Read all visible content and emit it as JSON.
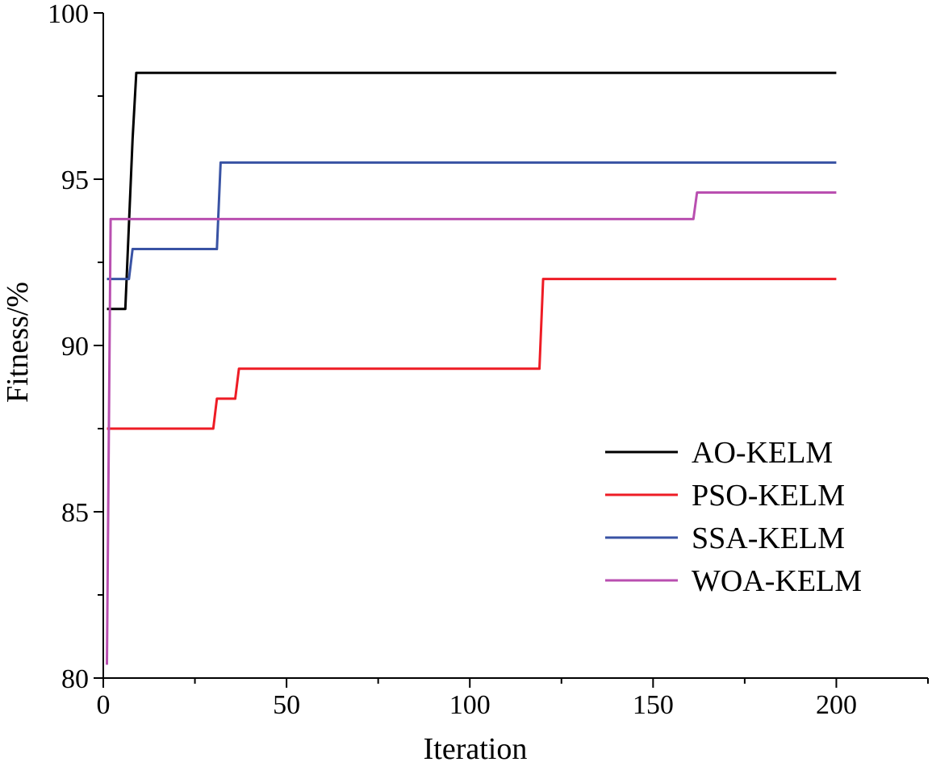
{
  "chart_data": {
    "type": "line",
    "title": "",
    "xlabel": "Iteration",
    "ylabel": "Fitness/%",
    "xlim": [
      0,
      225
    ],
    "ylim": [
      80,
      100
    ],
    "xticks": [
      0,
      50,
      100,
      150,
      200
    ],
    "yticks": [
      80,
      85,
      90,
      95,
      100
    ],
    "grid": false,
    "legend_position": "bottom-right",
    "series": [
      {
        "name": "AO-KELM",
        "color": "#000000",
        "points": [
          [
            1,
            91.1
          ],
          [
            6,
            91.1
          ],
          [
            8,
            96.2
          ],
          [
            9,
            98.2
          ],
          [
            200,
            98.2
          ]
        ]
      },
      {
        "name": "PSO-KELM",
        "color": "#ee1c25",
        "points": [
          [
            1,
            87.5
          ],
          [
            30,
            87.5
          ],
          [
            31,
            88.4
          ],
          [
            36,
            88.4
          ],
          [
            37,
            89.3
          ],
          [
            119,
            89.3
          ],
          [
            120,
            92.0
          ],
          [
            200,
            92.0
          ]
        ]
      },
      {
        "name": "SSA-KELM",
        "color": "#3953a4",
        "points": [
          [
            1,
            92.0
          ],
          [
            7,
            92.0
          ],
          [
            8,
            92.9
          ],
          [
            31,
            92.9
          ],
          [
            32,
            95.5
          ],
          [
            200,
            95.5
          ]
        ]
      },
      {
        "name": "WOA-KELM",
        "color": "#b94fb0",
        "points": [
          [
            1,
            80.4
          ],
          [
            2,
            93.8
          ],
          [
            161,
            93.8
          ],
          [
            162,
            94.6
          ],
          [
            200,
            94.6
          ]
        ]
      }
    ]
  }
}
